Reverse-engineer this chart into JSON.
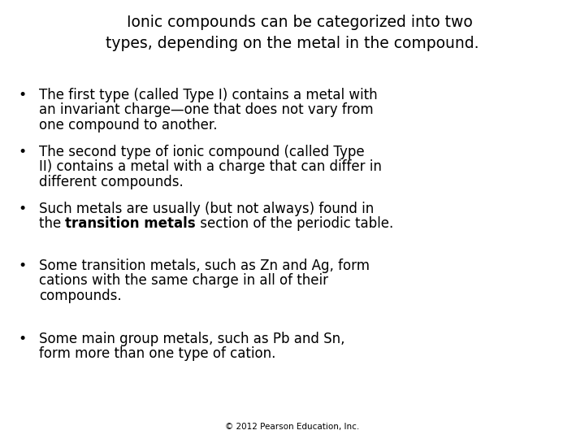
{
  "background_color": "#ffffff",
  "title_line1": "   Ionic compounds can be categorized into two",
  "title_line2": "types, depending on the metal in the compound.",
  "title_fontsize": 13.5,
  "bullet_fontsize": 12.0,
  "footer": "© 2012 Pearson Education, Inc.",
  "footer_fontsize": 7.5,
  "font_family": "DejaVu Sans",
  "bullet_items": [
    {
      "lines": [
        "The first type (called Type I) contains a metal with",
        "an invariant charge—one that does not vary from",
        "one compound to another."
      ],
      "bold_line": -1,
      "bold_start": "",
      "bold_end": "",
      "after_bold": ""
    },
    {
      "lines": [
        "The second type of ionic compound (called Type",
        "II) contains a metal with a charge that can differ in",
        "different compounds."
      ],
      "bold_line": -1,
      "bold_start": "",
      "bold_end": "",
      "after_bold": ""
    },
    {
      "lines": [
        "Such metals are usually (but not always) found in",
        "the BOLD_HERE section of the periodic table."
      ],
      "bold_line": 1,
      "bold_prefix": "the ",
      "bold_word": "transition metals",
      "bold_suffix": " section of the periodic table."
    },
    {
      "lines": [
        "Some transition metals, such as Zn and Ag, form",
        "cations with the same charge in all of their",
        "compounds."
      ],
      "bold_line": -1,
      "bold_start": "",
      "bold_end": "",
      "after_bold": ""
    },
    {
      "lines": [
        "Some main group metals, such as Pb and Sn,",
        "form more than one type of cation."
      ],
      "bold_line": -1,
      "bold_start": "",
      "bold_end": "",
      "after_bold": ""
    }
  ]
}
